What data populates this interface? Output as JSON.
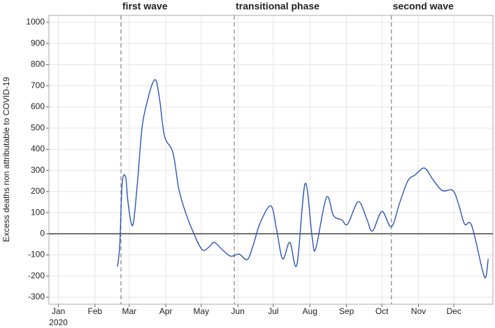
{
  "chart_data": {
    "type": "line",
    "y_label": "Excess deaths non attributable to COVID-19",
    "x_year_label": "2020",
    "x": [
      50,
      52,
      54,
      57,
      59,
      63,
      67,
      71,
      76,
      80,
      83,
      86,
      90,
      97,
      102,
      108,
      115,
      122,
      128,
      132,
      139,
      146,
      153,
      160,
      165,
      171,
      180,
      185,
      190,
      196,
      202,
      209,
      215,
      218,
      227,
      233,
      240,
      245,
      254,
      261,
      266,
      274,
      282,
      289,
      296,
      302,
      310,
      317,
      325,
      334,
      339,
      344,
      350,
      359,
      362,
      364
    ],
    "series": [
      {
        "name": "Excess deaths",
        "color": "#2f55b8",
        "values": [
          -155,
          -53,
          238,
          268,
          146,
          40,
          245,
          509,
          642,
          715,
          721,
          625,
          460,
          384,
          212,
          96,
          -3,
          -76,
          -60,
          -40,
          -76,
          -106,
          -96,
          -122,
          -53,
          53,
          132,
          13,
          -119,
          -40,
          -146,
          238,
          -20,
          -69,
          172,
          86,
          66,
          46,
          152,
          73,
          13,
          106,
          33,
          146,
          251,
          278,
          311,
          258,
          205,
          205,
          139,
          46,
          40,
          -169,
          -205,
          -119
        ]
      }
    ],
    "xlim": [
      -8,
      368
    ],
    "xticks": [
      {
        "value": 0,
        "label": "Jan"
      },
      {
        "value": 31,
        "label": "Feb"
      },
      {
        "value": 60,
        "label": "Mar"
      },
      {
        "value": 91,
        "label": "Apr"
      },
      {
        "value": 121,
        "label": "May"
      },
      {
        "value": 152,
        "label": "Jun"
      },
      {
        "value": 182,
        "label": "Jul"
      },
      {
        "value": 213,
        "label": "Aug"
      },
      {
        "value": 244,
        "label": "Sep"
      },
      {
        "value": 274,
        "label": "Oct"
      },
      {
        "value": 305,
        "label": "Nov"
      },
      {
        "value": 335,
        "label": "Dec"
      }
    ],
    "ylim": [
      -333,
      1033
    ],
    "yticks": [
      -300,
      -200,
      -100,
      0,
      100,
      200,
      300,
      400,
      500,
      600,
      700,
      800,
      900,
      1000
    ],
    "grid": true,
    "reference_line_y": 0,
    "phases": [
      {
        "label": "first wave",
        "x": 53
      },
      {
        "label": "transitional phase",
        "x": 149
      },
      {
        "label": "second wave",
        "x": 282
      }
    ]
  }
}
